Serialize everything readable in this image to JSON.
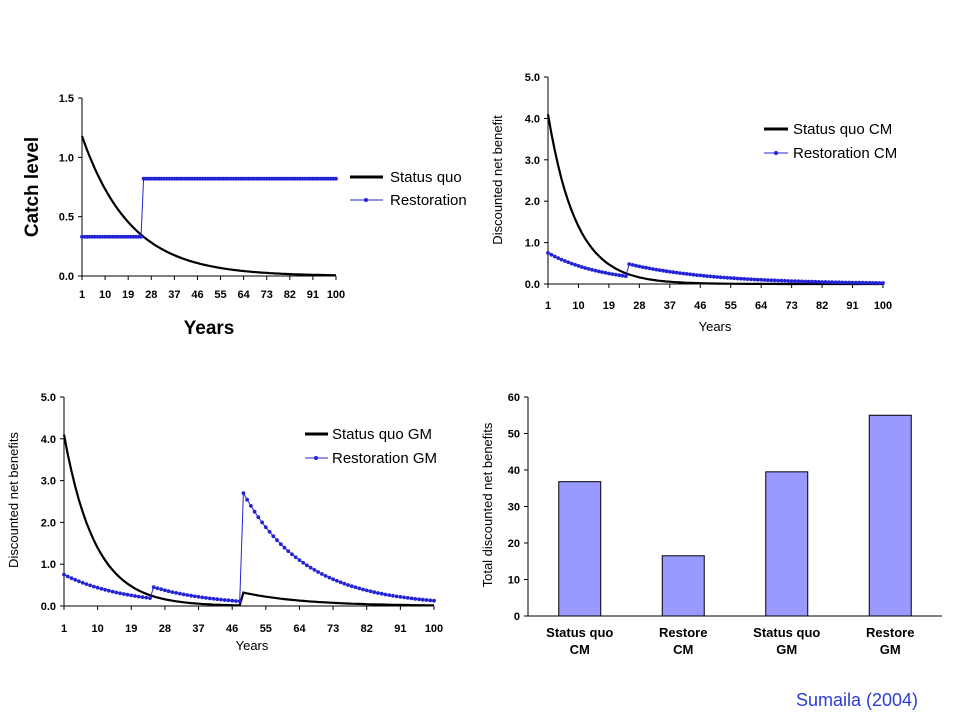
{
  "citation": "Sumaila (2004)",
  "colors": {
    "status": "#000000",
    "restoration": "#2424d6",
    "bar_fill": "#9999ff"
  },
  "chart_data": [
    {
      "type": "line",
      "id": "catch",
      "ylabel": "Catch level",
      "xlabel": "Years",
      "xlim": [
        1,
        100
      ],
      "ylim": [
        0,
        1.5
      ],
      "x_ticks": [
        1,
        10,
        19,
        28,
        37,
        46,
        55,
        64,
        73,
        82,
        91,
        100
      ],
      "y_ticks": [
        "0.0",
        "0.5",
        "1.0",
        "1.5"
      ],
      "series": [
        {
          "name": "Status quo",
          "style": "line",
          "start": 1.18,
          "decay": 0.053
        },
        {
          "name": "Restoration",
          "style": "markers",
          "segments": [
            {
              "from": 1,
              "to": 24,
              "value": 0.33
            },
            {
              "from": 25,
              "to": 100,
              "value": 0.82
            }
          ]
        }
      ]
    },
    {
      "type": "line",
      "id": "cm",
      "ylabel": "Discounted net benefit",
      "xlabel": "Years",
      "xlim": [
        1,
        100
      ],
      "ylim": [
        0,
        5
      ],
      "x_ticks": [
        1,
        10,
        19,
        28,
        37,
        46,
        55,
        64,
        73,
        82,
        91,
        100
      ],
      "y_ticks": [
        "0.0",
        "1.0",
        "2.0",
        "3.0",
        "4.0",
        "5.0"
      ],
      "series": [
        {
          "name": "Status quo CM",
          "style": "line",
          "start": 4.1,
          "decay": 0.12
        },
        {
          "name": "Restoration CM",
          "style": "markers",
          "segments": [
            {
              "from": 1,
              "to": 24,
              "start": 0.75,
              "decay": 0.06
            },
            {
              "from": 25,
              "to": 100,
              "start": 0.48,
              "decay": 0.04
            }
          ]
        }
      ]
    },
    {
      "type": "line",
      "id": "gm",
      "ylabel": "Discounted net benefits",
      "xlabel": "Years",
      "xlim": [
        1,
        100
      ],
      "ylim": [
        0,
        5
      ],
      "x_ticks": [
        1,
        10,
        19,
        28,
        37,
        46,
        55,
        64,
        73,
        82,
        91,
        100
      ],
      "y_ticks": [
        "0.0",
        "1.0",
        "2.0",
        "3.0",
        "4.0",
        "5.0"
      ],
      "series": [
        {
          "name": "Status quo GM",
          "style": "line",
          "segments": [
            {
              "from": 1,
              "to": 48,
              "start": 4.1,
              "decay": 0.12
            },
            {
              "from": 49,
              "to": 100,
              "start": 0.32,
              "decay": 0.06
            }
          ]
        },
        {
          "name": "Restoration GM",
          "style": "markers",
          "segments": [
            {
              "from": 1,
              "to": 24,
              "start": 0.75,
              "decay": 0.06
            },
            {
              "from": 25,
              "to": 48,
              "start": 0.45,
              "decay": 0.06
            },
            {
              "from": 49,
              "to": 100,
              "start": 2.7,
              "decay": 0.06
            }
          ]
        }
      ]
    },
    {
      "type": "bar",
      "id": "totals",
      "ylabel": "Total discounted net benefits",
      "ylim": [
        0,
        60
      ],
      "y_ticks": [
        "0",
        "10",
        "20",
        "30",
        "40",
        "50",
        "60"
      ],
      "categories": [
        [
          "Status quo",
          "CM"
        ],
        [
          "Restore",
          "CM"
        ],
        [
          "Status quo",
          "GM"
        ],
        [
          "Restore",
          "GM"
        ]
      ],
      "values": [
        36.8,
        16.5,
        39.5,
        55.0
      ]
    }
  ]
}
